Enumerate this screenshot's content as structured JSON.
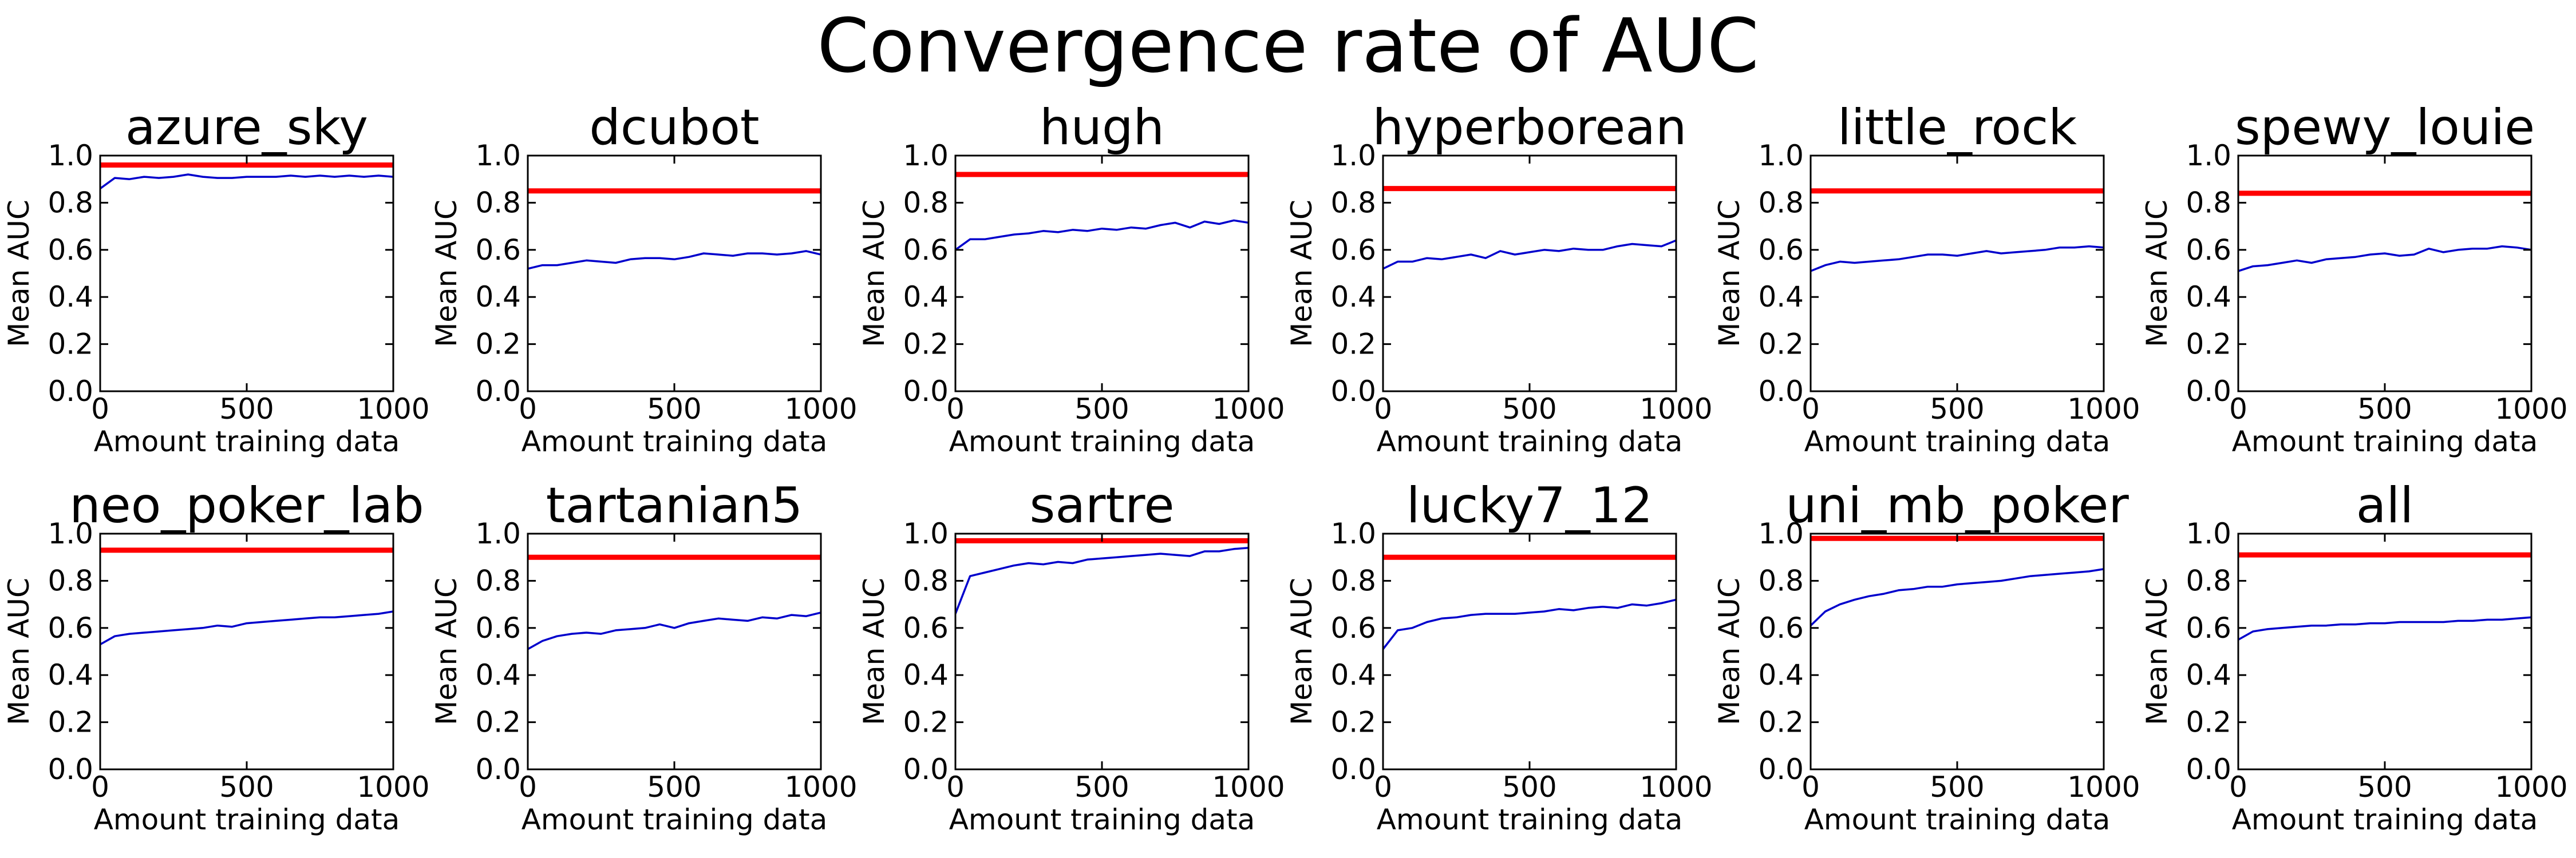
{
  "figure_title": "Convergence rate of AUC",
  "colors": {
    "reference": "#ff0000",
    "series": "#0000cc",
    "axes": "#000000"
  },
  "chart_data": [
    {
      "type": "line",
      "title": "azure_sky",
      "xlabel": "Amount training data",
      "ylabel": "Mean AUC",
      "xlim": [
        0,
        1000
      ],
      "ylim": [
        0,
        1.0
      ],
      "xticks": [
        "0",
        "500",
        "1000"
      ],
      "yticks": [
        "0.0",
        "0.2",
        "0.4",
        "0.6",
        "0.8",
        "1.0"
      ],
      "reference_line": 0.96,
      "x": [
        0,
        50,
        100,
        150,
        200,
        250,
        300,
        350,
        400,
        450,
        500,
        550,
        600,
        650,
        700,
        750,
        800,
        850,
        900,
        950,
        1000
      ],
      "y": [
        0.86,
        0.905,
        0.9,
        0.91,
        0.905,
        0.91,
        0.92,
        0.91,
        0.905,
        0.905,
        0.91,
        0.91,
        0.91,
        0.915,
        0.91,
        0.915,
        0.91,
        0.915,
        0.91,
        0.915,
        0.91
      ]
    },
    {
      "type": "line",
      "title": "dcubot",
      "xlabel": "Amount training data",
      "ylabel": "Mean AUC",
      "xlim": [
        0,
        1000
      ],
      "ylim": [
        0,
        1.0
      ],
      "xticks": [
        "0",
        "500",
        "1000"
      ],
      "yticks": [
        "0.0",
        "0.2",
        "0.4",
        "0.6",
        "0.8",
        "1.0"
      ],
      "reference_line": 0.85,
      "x": [
        0,
        50,
        100,
        150,
        200,
        250,
        300,
        350,
        400,
        450,
        500,
        550,
        600,
        650,
        700,
        750,
        800,
        850,
        900,
        950,
        1000
      ],
      "y": [
        0.52,
        0.535,
        0.535,
        0.545,
        0.555,
        0.55,
        0.545,
        0.56,
        0.565,
        0.565,
        0.56,
        0.57,
        0.585,
        0.58,
        0.575,
        0.585,
        0.585,
        0.58,
        0.585,
        0.595,
        0.58
      ]
    },
    {
      "type": "line",
      "title": "hugh",
      "xlabel": "Amount training data",
      "ylabel": "Mean AUC",
      "xlim": [
        0,
        1000
      ],
      "ylim": [
        0,
        1.0
      ],
      "xticks": [
        "0",
        "500",
        "1000"
      ],
      "yticks": [
        "0.0",
        "0.2",
        "0.4",
        "0.6",
        "0.8",
        "1.0"
      ],
      "reference_line": 0.92,
      "x": [
        0,
        50,
        100,
        150,
        200,
        250,
        300,
        350,
        400,
        450,
        500,
        550,
        600,
        650,
        700,
        750,
        800,
        850,
        900,
        950,
        1000
      ],
      "y": [
        0.6,
        0.645,
        0.645,
        0.655,
        0.665,
        0.67,
        0.68,
        0.675,
        0.685,
        0.68,
        0.69,
        0.685,
        0.695,
        0.69,
        0.705,
        0.715,
        0.695,
        0.72,
        0.71,
        0.725,
        0.715
      ]
    },
    {
      "type": "line",
      "title": "hyperborean",
      "xlabel": "Amount training data",
      "ylabel": "Mean AUC",
      "xlim": [
        0,
        1000
      ],
      "ylim": [
        0,
        1.0
      ],
      "xticks": [
        "0",
        "500",
        "1000"
      ],
      "yticks": [
        "0.0",
        "0.2",
        "0.4",
        "0.6",
        "0.8",
        "1.0"
      ],
      "reference_line": 0.86,
      "x": [
        0,
        50,
        100,
        150,
        200,
        250,
        300,
        350,
        400,
        450,
        500,
        550,
        600,
        650,
        700,
        750,
        800,
        850,
        900,
        950,
        1000
      ],
      "y": [
        0.52,
        0.55,
        0.55,
        0.565,
        0.56,
        0.57,
        0.58,
        0.565,
        0.595,
        0.58,
        0.59,
        0.6,
        0.595,
        0.605,
        0.6,
        0.6,
        0.615,
        0.625,
        0.62,
        0.615,
        0.64
      ]
    },
    {
      "type": "line",
      "title": "little_rock",
      "xlabel": "Amount training data",
      "ylabel": "Mean AUC",
      "xlim": [
        0,
        1000
      ],
      "ylim": [
        0,
        1.0
      ],
      "xticks": [
        "0",
        "500",
        "1000"
      ],
      "yticks": [
        "0.0",
        "0.2",
        "0.4",
        "0.6",
        "0.8",
        "1.0"
      ],
      "reference_line": 0.85,
      "x": [
        0,
        50,
        100,
        150,
        200,
        250,
        300,
        350,
        400,
        450,
        500,
        550,
        600,
        650,
        700,
        750,
        800,
        850,
        900,
        950,
        1000
      ],
      "y": [
        0.51,
        0.535,
        0.55,
        0.545,
        0.55,
        0.555,
        0.56,
        0.57,
        0.58,
        0.58,
        0.575,
        0.585,
        0.595,
        0.585,
        0.59,
        0.595,
        0.6,
        0.61,
        0.61,
        0.615,
        0.61
      ]
    },
    {
      "type": "line",
      "title": "spewy_louie",
      "xlabel": "Amount training data",
      "ylabel": "Mean AUC",
      "xlim": [
        0,
        1000
      ],
      "ylim": [
        0,
        1.0
      ],
      "xticks": [
        "0",
        "500",
        "1000"
      ],
      "yticks": [
        "0.0",
        "0.2",
        "0.4",
        "0.6",
        "0.8",
        "1.0"
      ],
      "reference_line": 0.84,
      "x": [
        0,
        50,
        100,
        150,
        200,
        250,
        300,
        350,
        400,
        450,
        500,
        550,
        600,
        650,
        700,
        750,
        800,
        850,
        900,
        950,
        1000
      ],
      "y": [
        0.51,
        0.53,
        0.535,
        0.545,
        0.555,
        0.545,
        0.56,
        0.565,
        0.57,
        0.58,
        0.585,
        0.575,
        0.58,
        0.605,
        0.59,
        0.6,
        0.605,
        0.605,
        0.615,
        0.61,
        0.6
      ]
    },
    {
      "type": "line",
      "title": "neo_poker_lab",
      "xlabel": "Amount training data",
      "ylabel": "Mean AUC",
      "xlim": [
        0,
        1000
      ],
      "ylim": [
        0,
        1.0
      ],
      "xticks": [
        "0",
        "500",
        "1000"
      ],
      "yticks": [
        "0.0",
        "0.2",
        "0.4",
        "0.6",
        "0.8",
        "1.0"
      ],
      "reference_line": 0.93,
      "x": [
        0,
        50,
        100,
        150,
        200,
        250,
        300,
        350,
        400,
        450,
        500,
        550,
        600,
        650,
        700,
        750,
        800,
        850,
        900,
        950,
        1000
      ],
      "y": [
        0.53,
        0.565,
        0.575,
        0.58,
        0.585,
        0.59,
        0.595,
        0.6,
        0.61,
        0.605,
        0.62,
        0.625,
        0.63,
        0.635,
        0.64,
        0.645,
        0.645,
        0.65,
        0.655,
        0.66,
        0.67
      ]
    },
    {
      "type": "line",
      "title": "tartanian5",
      "xlabel": "Amount training data",
      "ylabel": "Mean AUC",
      "xlim": [
        0,
        1000
      ],
      "ylim": [
        0,
        1.0
      ],
      "xticks": [
        "0",
        "500",
        "1000"
      ],
      "yticks": [
        "0.0",
        "0.2",
        "0.4",
        "0.6",
        "0.8",
        "1.0"
      ],
      "reference_line": 0.9,
      "x": [
        0,
        50,
        100,
        150,
        200,
        250,
        300,
        350,
        400,
        450,
        500,
        550,
        600,
        650,
        700,
        750,
        800,
        850,
        900,
        950,
        1000
      ],
      "y": [
        0.51,
        0.545,
        0.565,
        0.575,
        0.58,
        0.575,
        0.59,
        0.595,
        0.6,
        0.615,
        0.6,
        0.62,
        0.63,
        0.64,
        0.635,
        0.63,
        0.645,
        0.64,
        0.655,
        0.65,
        0.665
      ]
    },
    {
      "type": "line",
      "title": "sartre",
      "xlabel": "Amount training data",
      "ylabel": "Mean AUC",
      "xlim": [
        0,
        1000
      ],
      "ylim": [
        0,
        1.0
      ],
      "xticks": [
        "0",
        "500",
        "1000"
      ],
      "yticks": [
        "0.0",
        "0.2",
        "0.4",
        "0.6",
        "0.8",
        "1.0"
      ],
      "reference_line": 0.97,
      "x": [
        0,
        50,
        100,
        150,
        200,
        250,
        300,
        350,
        400,
        450,
        500,
        550,
        600,
        650,
        700,
        750,
        800,
        850,
        900,
        950,
        1000
      ],
      "y": [
        0.66,
        0.82,
        0.835,
        0.85,
        0.865,
        0.875,
        0.87,
        0.88,
        0.875,
        0.89,
        0.895,
        0.9,
        0.905,
        0.91,
        0.915,
        0.91,
        0.905,
        0.925,
        0.925,
        0.935,
        0.94
      ]
    },
    {
      "type": "line",
      "title": "lucky7_12",
      "xlabel": "Amount training data",
      "ylabel": "Mean AUC",
      "xlim": [
        0,
        1000
      ],
      "ylim": [
        0,
        1.0
      ],
      "xticks": [
        "0",
        "500",
        "1000"
      ],
      "yticks": [
        "0.0",
        "0.2",
        "0.4",
        "0.6",
        "0.8",
        "1.0"
      ],
      "reference_line": 0.9,
      "x": [
        0,
        50,
        100,
        150,
        200,
        250,
        300,
        350,
        400,
        450,
        500,
        550,
        600,
        650,
        700,
        750,
        800,
        850,
        900,
        950,
        1000
      ],
      "y": [
        0.51,
        0.59,
        0.6,
        0.625,
        0.64,
        0.645,
        0.655,
        0.66,
        0.66,
        0.66,
        0.665,
        0.67,
        0.68,
        0.675,
        0.685,
        0.69,
        0.685,
        0.7,
        0.695,
        0.705,
        0.72
      ]
    },
    {
      "type": "line",
      "title": "uni_mb_poker",
      "xlabel": "Amount training data",
      "ylabel": "Mean AUC",
      "xlim": [
        0,
        1000
      ],
      "ylim": [
        0,
        1.0
      ],
      "xticks": [
        "0",
        "500",
        "1000"
      ],
      "yticks": [
        "0.0",
        "0.2",
        "0.4",
        "0.6",
        "0.8",
        "1.0"
      ],
      "reference_line": 0.98,
      "x": [
        0,
        50,
        100,
        150,
        200,
        250,
        300,
        350,
        400,
        450,
        500,
        550,
        600,
        650,
        700,
        750,
        800,
        850,
        900,
        950,
        1000
      ],
      "y": [
        0.61,
        0.67,
        0.7,
        0.72,
        0.735,
        0.745,
        0.76,
        0.765,
        0.775,
        0.775,
        0.785,
        0.79,
        0.795,
        0.8,
        0.81,
        0.82,
        0.825,
        0.83,
        0.835,
        0.84,
        0.85
      ]
    },
    {
      "type": "line",
      "title": "all",
      "xlabel": "Amount training data",
      "ylabel": "Mean AUC",
      "xlim": [
        0,
        1000
      ],
      "ylim": [
        0,
        1.0
      ],
      "xticks": [
        "0",
        "500",
        "1000"
      ],
      "yticks": [
        "0.0",
        "0.2",
        "0.4",
        "0.6",
        "0.8",
        "1.0"
      ],
      "reference_line": 0.91,
      "x": [
        0,
        50,
        100,
        150,
        200,
        250,
        300,
        350,
        400,
        450,
        500,
        550,
        600,
        650,
        700,
        750,
        800,
        850,
        900,
        950,
        1000
      ],
      "y": [
        0.55,
        0.585,
        0.595,
        0.6,
        0.605,
        0.61,
        0.61,
        0.615,
        0.615,
        0.62,
        0.62,
        0.625,
        0.625,
        0.625,
        0.625,
        0.63,
        0.63,
        0.635,
        0.635,
        0.64,
        0.645
      ]
    }
  ]
}
